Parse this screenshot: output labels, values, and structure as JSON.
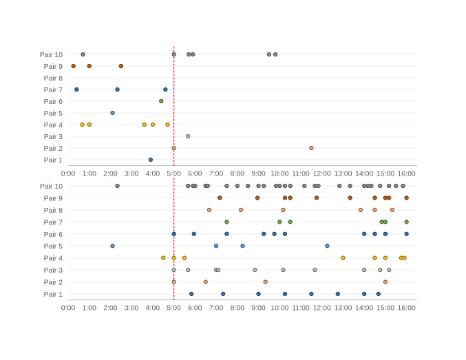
{
  "chart_data": [
    {
      "type": "scatter",
      "title": "",
      "xlabel": "",
      "ylabel": "",
      "xlim": [
        0,
        16.5
      ],
      "x_ticks": [
        "0:00",
        "1:00",
        "2:00",
        "3:00",
        "4:00",
        "5:00",
        "6:00",
        "7:00",
        "8:00",
        "9:00",
        "10:00",
        "11:00",
        "12:00",
        "13:00",
        "14:00",
        "15:00",
        "16:00"
      ],
      "categories": [
        "Pair 1",
        "Pair 2",
        "Pair 3",
        "Pair 4",
        "Pair 5",
        "Pair 6",
        "Pair 7",
        "Pair 8",
        "Pair 9",
        "Pair 10"
      ],
      "reference_line_x": 5.0,
      "grid": "horizontal",
      "series": [
        {
          "category": "Pair 1",
          "color": "#4472c4",
          "x": [
            3.9
          ]
        },
        {
          "category": "Pair 2",
          "color": "#f4a26b",
          "x": [
            5.0,
            11.5
          ]
        },
        {
          "category": "Pair 3",
          "color": "#bdbdbd",
          "x": [
            5.67
          ]
        },
        {
          "category": "Pair 4",
          "color": "#ffc000",
          "x": [
            0.67,
            1.0,
            3.6,
            4.0,
            4.7
          ]
        },
        {
          "category": "Pair 5",
          "color": "#5b9bd5",
          "x": [
            2.1
          ]
        },
        {
          "category": "Pair 6",
          "color": "#70ad47",
          "x": [
            4.4
          ]
        },
        {
          "category": "Pair 7",
          "color": "#2e75b6",
          "x": [
            0.4,
            2.33,
            4.6
          ]
        },
        {
          "category": "Pair 8",
          "color": "#f4a26b",
          "x": []
        },
        {
          "category": "Pair 9",
          "color": "#c55a11",
          "x": [
            0.25,
            1.0,
            2.5
          ]
        },
        {
          "category": "Pair 10",
          "color": "#8c8c8c",
          "x": [
            0.7,
            5.0,
            5.7,
            5.9,
            9.5,
            9.8
          ]
        }
      ]
    },
    {
      "type": "scatter",
      "title": "",
      "xlabel": "",
      "ylabel": "",
      "xlim": [
        0,
        16.5
      ],
      "x_ticks": [
        "0:00",
        "1:00",
        "2:00",
        "3:00",
        "4:00",
        "5:00",
        "6:00",
        "7:00",
        "8:00",
        "9:00",
        "10:00",
        "11:00",
        "12:00",
        "13:00",
        "14:00",
        "15:00",
        "16:00"
      ],
      "categories": [
        "Pair 1",
        "Pair 2",
        "Pair 3",
        "Pair 4",
        "Pair 5",
        "Pair 6",
        "Pair 7",
        "Pair 8",
        "Pair 9",
        "Pair 10"
      ],
      "reference_line_x": 5.0,
      "grid": "horizontal",
      "series": [
        {
          "category": "Pair 1",
          "color": "#2e75b6",
          "x": [
            5.83,
            7.33,
            9.0,
            10.25,
            11.5,
            12.75,
            14.0,
            14.67
          ]
        },
        {
          "category": "Pair 2",
          "color": "#f4a26b",
          "x": [
            5.0,
            6.5,
            9.33,
            15.0
          ]
        },
        {
          "category": "Pair 3",
          "color": "#bdbdbd",
          "x": [
            5.0,
            5.67,
            7.0,
            7.1,
            8.83,
            10.17,
            11.67,
            14.0,
            14.75,
            15.17
          ]
        },
        {
          "category": "Pair 4",
          "color": "#ffc000",
          "x": [
            4.5,
            5.0,
            5.5,
            13.0,
            14.5,
            15.0,
            15.75,
            15.9
          ]
        },
        {
          "category": "Pair 5",
          "color": "#5b9bd5",
          "x": [
            2.1,
            7.0,
            8.25,
            12.25
          ]
        },
        {
          "category": "Pair 6",
          "color": "#2e75b6",
          "x": [
            5.0,
            5.95,
            7.5,
            9.25,
            9.75,
            10.25,
            14.0,
            14.5,
            15.0,
            16.0
          ]
        },
        {
          "category": "Pair 7",
          "color": "#70ad47",
          "x": [
            7.5,
            10.0,
            10.5,
            14.83,
            15.0,
            16.0
          ]
        },
        {
          "category": "Pair 8",
          "color": "#f4a26b",
          "x": [
            6.67,
            8.17,
            10.17,
            13.83,
            14.5,
            15.33
          ]
        },
        {
          "category": "Pair 9",
          "color": "#c55a11",
          "x": [
            7.17,
            8.95,
            10.25,
            10.5,
            11.75,
            13.33,
            14.5,
            15.0,
            15.17,
            16.0
          ]
        },
        {
          "category": "Pair 10",
          "color": "#8c8c8c",
          "x": [
            2.33,
            5.67,
            5.9,
            6.0,
            6.5,
            6.6,
            7.5,
            8.0,
            8.5,
            9.0,
            9.25,
            9.83,
            10.0,
            10.25,
            10.5,
            11.17,
            11.67,
            11.83,
            12.83,
            13.33,
            14.0,
            14.17,
            14.33,
            14.75,
            15.17,
            15.5,
            15.83
          ]
        }
      ]
    }
  ]
}
